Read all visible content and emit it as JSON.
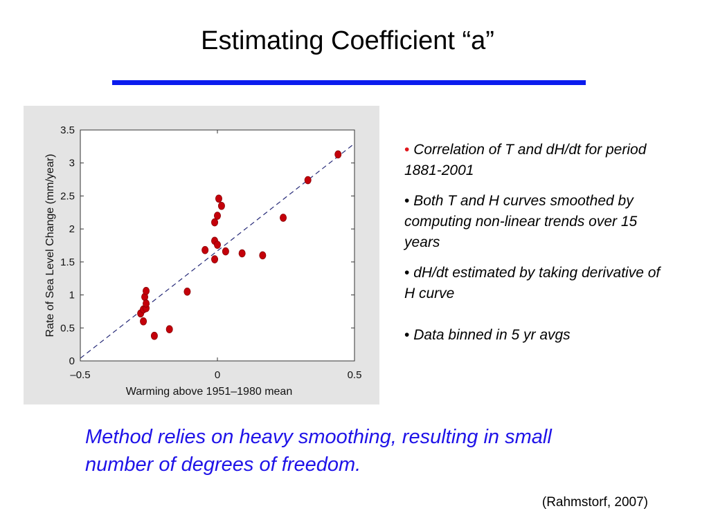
{
  "slide": {
    "title": "Estimating Coefficient “a”",
    "conclusion": "Method relies on heavy smoothing, resulting in small number of degrees of freedom.",
    "citation": "(Rahmstorf, 2007)",
    "bullets": [
      {
        "marker": "•",
        "marker_color": "#e0151b",
        "text": "Correlation of T and dH/dt for period 1881-2001"
      },
      {
        "marker": "•",
        "marker_color": "#000000",
        "text": "Both T and H curves smoothed by computing non-linear trends over 15 years"
      },
      {
        "marker": "•",
        "marker_color": "#000000",
        "text": "dH/dt estimated by taking derivative of H curve"
      },
      {
        "marker": "•",
        "marker_color": "#000000",
        "text": "Data binned in 5 yr avgs"
      }
    ],
    "colors": {
      "title_rule": "#0b1cee",
      "conclusion_text": "#1f13e8",
      "figure_background": "#e4e4e4",
      "points": "#c4000a",
      "fit_line": "#262a78"
    }
  },
  "chart_data": {
    "type": "scatter",
    "title": "",
    "xlabel": "Warming above 1951–1980 mean",
    "ylabel": "Rate of Sea Level Change (mm/year)",
    "xlim": [
      -0.5,
      0.5
    ],
    "ylim": [
      0,
      3.5
    ],
    "x_ticks": [
      -0.5,
      0,
      0.5
    ],
    "x_tick_labels": [
      "–0.5",
      "0",
      "0.5"
    ],
    "y_ticks": [
      0,
      0.5,
      1,
      1.5,
      2,
      2.5,
      3,
      3.5
    ],
    "y_tick_labels": [
      "0",
      "0.5",
      "1",
      "1.5",
      "2",
      "2.5",
      "3",
      "3.5"
    ],
    "grid": false,
    "points": [
      {
        "x": -0.28,
        "y": 0.72
      },
      {
        "x": -0.27,
        "y": 0.6
      },
      {
        "x": -0.27,
        "y": 0.78
      },
      {
        "x": -0.265,
        "y": 0.97
      },
      {
        "x": -0.26,
        "y": 1.06
      },
      {
        "x": -0.26,
        "y": 0.8
      },
      {
        "x": -0.26,
        "y": 0.87
      },
      {
        "x": -0.23,
        "y": 0.38
      },
      {
        "x": -0.175,
        "y": 0.48
      },
      {
        "x": -0.11,
        "y": 1.05
      },
      {
        "x": -0.045,
        "y": 1.68
      },
      {
        "x": -0.01,
        "y": 1.54
      },
      {
        "x": -0.01,
        "y": 1.82
      },
      {
        "x": -0.01,
        "y": 2.1
      },
      {
        "x": 0.0,
        "y": 1.76
      },
      {
        "x": 0.0,
        "y": 2.2
      },
      {
        "x": 0.005,
        "y": 2.46
      },
      {
        "x": 0.015,
        "y": 2.35
      },
      {
        "x": 0.03,
        "y": 1.66
      },
      {
        "x": 0.09,
        "y": 1.63
      },
      {
        "x": 0.165,
        "y": 1.6
      },
      {
        "x": 0.24,
        "y": 2.17
      },
      {
        "x": 0.33,
        "y": 2.74
      },
      {
        "x": 0.44,
        "y": 3.13
      }
    ],
    "fit_line": {
      "x": [
        -0.5,
        0.52
      ],
      "y": [
        0.04,
        3.36
      ],
      "style": "dashed"
    }
  }
}
